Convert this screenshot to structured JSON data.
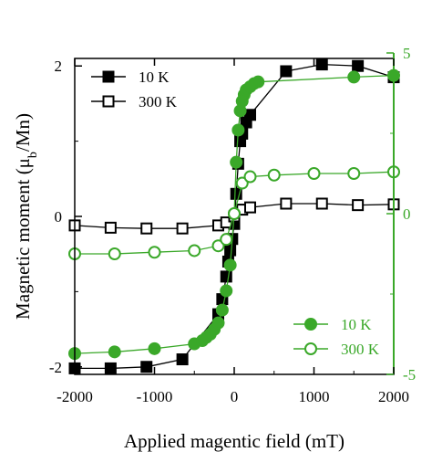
{
  "chart_data": {
    "type": "scatter",
    "xlabel": "Applied magentic field (mT)",
    "ylabel_parts": {
      "main": "Magnetic moment (μ",
      "sub": "b",
      "tail": "/Mn)"
    },
    "xlim": [
      -2000,
      2000
    ],
    "ylim_left": [
      -2.1,
      2.1
    ],
    "ylim_right": [
      -5,
      5
    ],
    "x_ticks": [
      "-2000",
      "-1000",
      "0",
      "1000",
      "2000"
    ],
    "y_left_ticks": [
      "-2",
      "0",
      "2"
    ],
    "y_right_ticks": [
      "-5",
      "0",
      "5"
    ],
    "colors": {
      "black_series": "#000000",
      "green_series": "#3aa829",
      "right_axis": "#3aa829"
    },
    "legend_top": [
      {
        "label": "10 K",
        "marker": "filled-square"
      },
      {
        "label": "300 K",
        "marker": "open-square"
      }
    ],
    "legend_bottom": [
      {
        "label": "10 K",
        "marker": "filled-circle"
      },
      {
        "label": "300 K",
        "marker": "open-circle"
      }
    ],
    "series": [
      {
        "name": "10 K",
        "axis": "left",
        "marker": "filled-square",
        "x": [
          -2000,
          -1550,
          -1100,
          -650,
          -200,
          -150,
          -100,
          -75,
          -50,
          -25,
          0,
          25,
          50,
          75,
          100,
          150,
          200,
          650,
          1100,
          1550,
          2000
        ],
        "y": [
          -2.02,
          -2.02,
          -2.0,
          -1.9,
          -1.3,
          -1.1,
          -0.8,
          -0.6,
          -0.45,
          -0.3,
          -0.1,
          0.3,
          0.7,
          1.0,
          1.1,
          1.25,
          1.35,
          1.93,
          2.02,
          2.0,
          1.85
        ]
      },
      {
        "name": "300 K",
        "axis": "left",
        "marker": "open-square",
        "x": [
          -2000,
          -1550,
          -1100,
          -650,
          -200,
          -100,
          0,
          100,
          200,
          650,
          1100,
          1550,
          2000
        ],
        "y": [
          -0.12,
          -0.15,
          -0.16,
          -0.16,
          -0.12,
          -0.08,
          0.0,
          0.09,
          0.12,
          0.17,
          0.17,
          0.15,
          0.16
        ]
      },
      {
        "name": "10 K",
        "axis": "right",
        "marker": "filled-circle",
        "x": [
          -2000,
          -1500,
          -1000,
          -500,
          -400,
          -350,
          -300,
          -250,
          -200,
          -150,
          -100,
          -50,
          0,
          25,
          50,
          75,
          100,
          125,
          150,
          200,
          250,
          300,
          1500,
          2000
        ],
        "y": [
          -4.35,
          -4.3,
          -4.2,
          -4.05,
          -3.95,
          -3.85,
          -3.75,
          -3.6,
          -3.4,
          -3.0,
          -2.4,
          -1.6,
          0.0,
          1.6,
          2.6,
          3.2,
          3.5,
          3.7,
          3.85,
          3.95,
          4.05,
          4.1,
          4.25,
          4.3
        ]
      },
      {
        "name": "300 K",
        "axis": "right",
        "marker": "open-circle",
        "x": [
          -2000,
          -1500,
          -1000,
          -500,
          -200,
          -100,
          0,
          100,
          200,
          500,
          1000,
          1500,
          2000
        ],
        "y": [
          -1.25,
          -1.25,
          -1.2,
          -1.15,
          -1.0,
          -0.8,
          0.0,
          0.95,
          1.15,
          1.2,
          1.25,
          1.25,
          1.3
        ]
      }
    ]
  }
}
